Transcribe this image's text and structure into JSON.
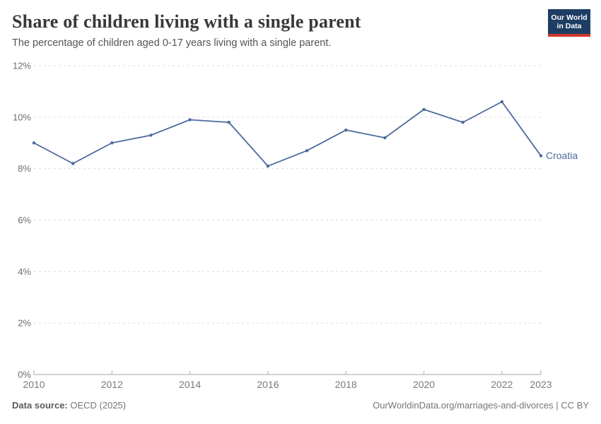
{
  "header": {
    "title": "Share of children living with a single parent",
    "subtitle": "The percentage of children aged 0-17 years living with a single parent.",
    "logo_line1": "Our World",
    "logo_line2": "in Data"
  },
  "footer": {
    "datasource_label": "Data source:",
    "datasource_value": " OECD (2025)",
    "link": "OurWorldinData.org/marriages-and-divorces | CC BY"
  },
  "colors": {
    "series": "#4C6A9C",
    "gridline": "#dcdcdc",
    "axis": "#a8a8a8",
    "logo_navy": "#1d3d63",
    "logo_red": "#d0382c"
  },
  "chart_data": {
    "type": "line",
    "title": "Share of children living with a single parent",
    "xlabel": "",
    "ylabel": "",
    "xlim": [
      2010,
      2023
    ],
    "ylim": [
      0,
      12
    ],
    "grid": "horizontal-dashed",
    "legend_position": "end-of-line",
    "yticks": [
      0,
      2,
      4,
      6,
      8,
      10,
      12
    ],
    "ytick_suffix": "%",
    "xticks": [
      2010,
      2012,
      2014,
      2016,
      2018,
      2020,
      2022,
      2023
    ],
    "series": [
      {
        "name": "Croatia",
        "color": "#4C6A9C",
        "x": [
          2010,
          2011,
          2012,
          2013,
          2014,
          2015,
          2016,
          2017,
          2018,
          2019,
          2020,
          2021,
          2022,
          2023
        ],
        "values": [
          9.0,
          8.2,
          9.0,
          9.3,
          9.9,
          9.8,
          8.1,
          8.7,
          9.5,
          9.2,
          10.3,
          9.8,
          10.6,
          8.5
        ]
      }
    ]
  }
}
